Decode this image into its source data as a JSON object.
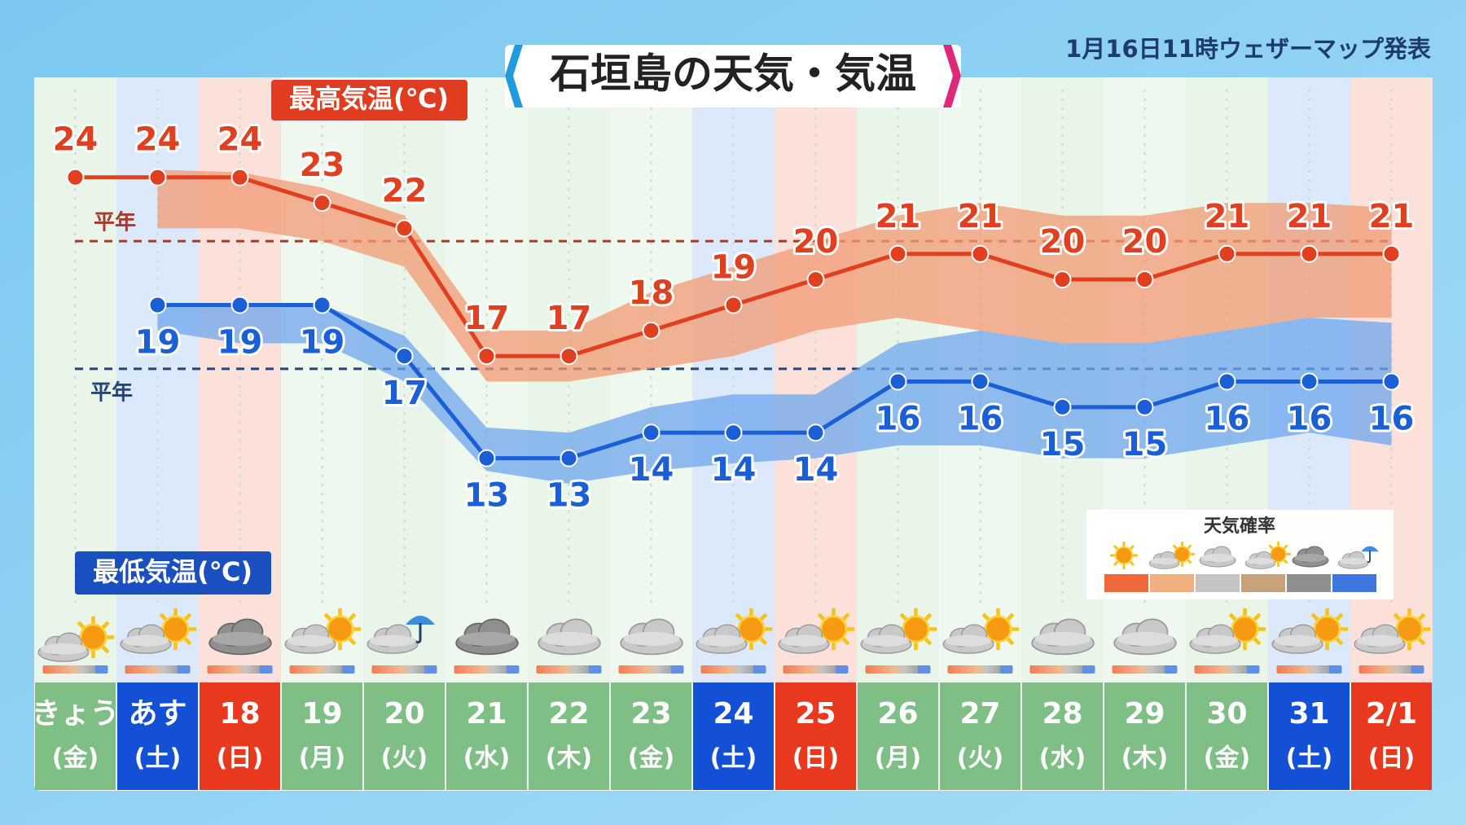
{
  "chart_data": {
    "type": "line",
    "title": "石垣島の天気・気温",
    "issued": "1月16日11時ウェザーマップ発表",
    "high_label": "最高気温(℃)",
    "low_label": "最低気温(℃)",
    "normal_high_label": "平年",
    "normal_low_label": "平年",
    "legend_title": "天気確率",
    "categories": [
      "きょう",
      "あす",
      "18",
      "19",
      "20",
      "21",
      "22",
      "23",
      "24",
      "25",
      "26",
      "27",
      "28",
      "29",
      "30",
      "31",
      "2/1"
    ],
    "weekdays": [
      "(金)",
      "(土)",
      "(日)",
      "(月)",
      "(火)",
      "(水)",
      "(木)",
      "(金)",
      "(土)",
      "(日)",
      "(月)",
      "(火)",
      "(水)",
      "(木)",
      "(金)",
      "(土)",
      "(日)"
    ],
    "ylim": [
      9,
      27.5
    ],
    "normal_high": 21.5,
    "normal_low": 16.5,
    "series": [
      {
        "name": "最高気温",
        "color": "#e0401f",
        "band_color": "#f39a74",
        "values": [
          24,
          24,
          24,
          23,
          22,
          17,
          17,
          18,
          19,
          20,
          21,
          21,
          20,
          20,
          21,
          21,
          21
        ],
        "upper": [
          null,
          24.3,
          24.2,
          23.6,
          22.5,
          18,
          18,
          19.5,
          20.5,
          21.5,
          22.5,
          23,
          22.5,
          22.5,
          23,
          23,
          22.8
        ],
        "lower": [
          null,
          22,
          22,
          21.5,
          20.5,
          16,
          16,
          16.5,
          17,
          18,
          18.5,
          18,
          17.5,
          17.5,
          18,
          18.5,
          18.5
        ]
      },
      {
        "name": "最低気温",
        "color": "#1a5fd6",
        "band_color": "#6fa6ee",
        "values": [
          null,
          19,
          19,
          19,
          17,
          13,
          13,
          14,
          14,
          14,
          16,
          16,
          15,
          15,
          16,
          16,
          16
        ],
        "upper": [
          null,
          19,
          19,
          19,
          17.8,
          14.2,
          14,
          15,
          15.5,
          15.5,
          17.5,
          18,
          17.5,
          17.5,
          18,
          18.5,
          18.3
        ],
        "lower": [
          null,
          18,
          17.5,
          17.5,
          16,
          12.5,
          12,
          12.5,
          12.8,
          13,
          13.5,
          13.5,
          13,
          13,
          13.5,
          14,
          13.5
        ]
      }
    ]
  }
}
